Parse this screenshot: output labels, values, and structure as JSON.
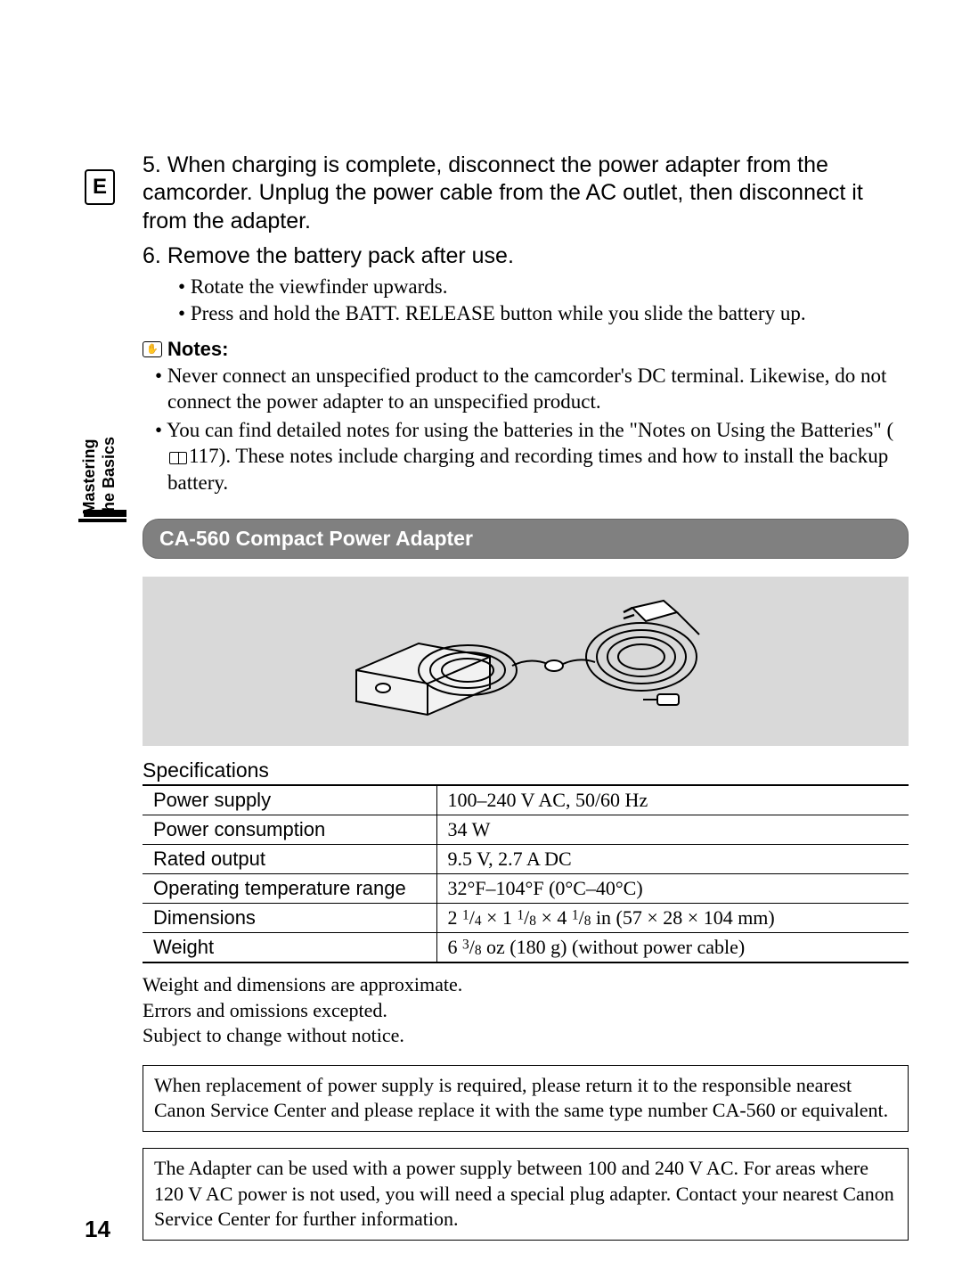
{
  "badge": "E",
  "side_tab": {
    "line1": "Mastering",
    "line2": "the Basics"
  },
  "steps": [
    {
      "num": "5.",
      "text": "When charging is complete, disconnect the power adapter from the camcorder. Unplug the power cable from the AC outlet, then disconnect it from the adapter."
    },
    {
      "num": "6.",
      "text": "Remove the battery pack after use.",
      "subs": [
        "Rotate the viewfinder upwards.",
        "Press and hold the BATT. RELEASE button while you slide the battery up."
      ]
    }
  ],
  "notes_label": "Notes:",
  "notes": [
    "Never connect an unspecified product to the camcorder's DC terminal. Likewise, do not connect the power adapter to an unspecified product.",
    {
      "pre": "You can find detailed notes for using the batteries in the \"Notes on Using the Batteries\" (",
      "ref": "117",
      "post": "). These notes include charging and recording times and how to install the backup battery."
    }
  ],
  "section_title": "CA-560 Compact Power Adapter",
  "spec_title": "Specifications",
  "specs": [
    {
      "label": "Power supply",
      "value": "100–240 V AC, 50/60 Hz"
    },
    {
      "label": "Power consumption",
      "value": "34 W"
    },
    {
      "label": "Rated output",
      "value": "9.5 V, 2.7 A DC"
    },
    {
      "label": "Operating temperature range",
      "value": "32°F–104°F (0°C–40°C)"
    },
    {
      "label": "Dimensions",
      "value_html": "2 <span class='frac-sup'>1</span>/<span class='frac-sub'>4</span> × 1 <span class='frac-sup'>1</span>/<span class='frac-sub'>8</span> × 4 <span class='frac-sup'>1</span>/<span class='frac-sub'>8</span> in (57 × 28 × 104 mm)"
    },
    {
      "label": "Weight",
      "value_html": "6 <span class='frac-sup'>3</span>/<span class='frac-sub'>8</span> oz (180 g) (without power cable)"
    }
  ],
  "disclaimer": "Weight and dimensions are approximate.\nErrors and omissions excepted.\nSubject to change without notice.",
  "box1": "When replacement of power supply is required, please return it to the responsible nearest Canon Service Center and please replace it with the same type number CA-560 or equivalent.",
  "box2": "The Adapter can be used with a power supply between 100 and 240 V AC. For areas where 120 V AC power is not used, you will need a special plug adapter. Contact your nearest Canon Service Center for further information.",
  "page_number": "14",
  "colors": {
    "banner_bg": "#808080",
    "banner_fg": "#ffffff",
    "image_bg": "#d9d9d9",
    "text": "#000000"
  }
}
